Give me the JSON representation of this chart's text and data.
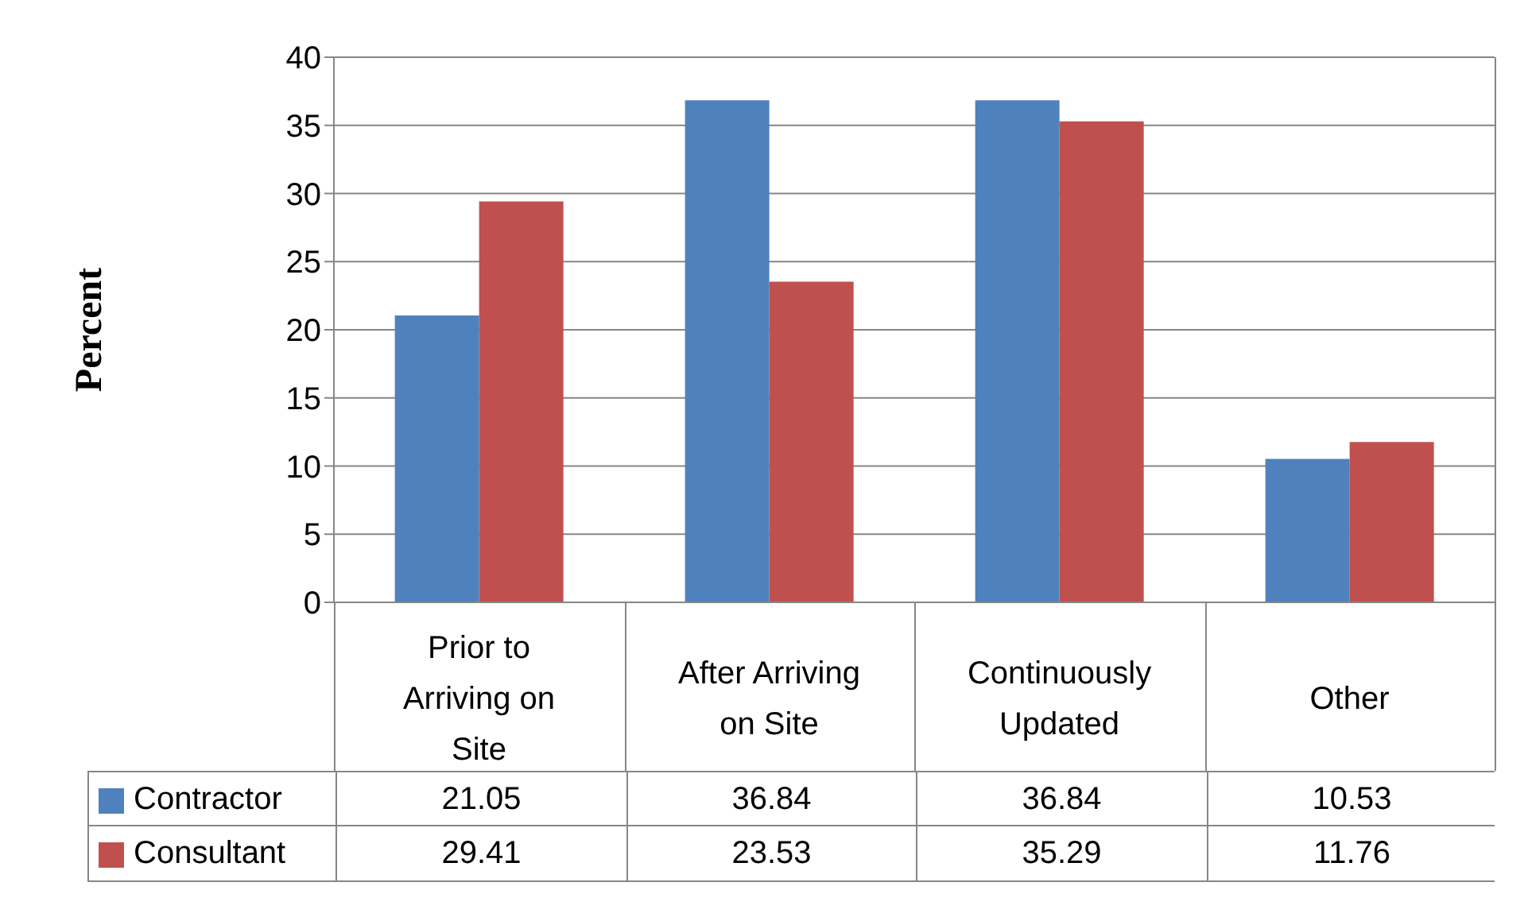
{
  "chart_data": {
    "type": "bar",
    "ylabel": "Percent",
    "categories": [
      "Prior to Arriving on Site",
      "After Arriving on Site",
      "Continuously Updated",
      "Other"
    ],
    "series": [
      {
        "name": "Contractor",
        "color": "#4f81bd",
        "values": [
          21.05,
          36.84,
          36.84,
          10.53
        ]
      },
      {
        "name": "Consultant",
        "color": "#c0504d",
        "values": [
          29.41,
          23.53,
          35.29,
          11.76
        ]
      }
    ],
    "ylim": [
      0,
      40
    ],
    "yticks": [
      0,
      5,
      10,
      15,
      20,
      25,
      30,
      35,
      40
    ],
    "grid": "y",
    "legend": "bottom left",
    "data_labels": true
  }
}
